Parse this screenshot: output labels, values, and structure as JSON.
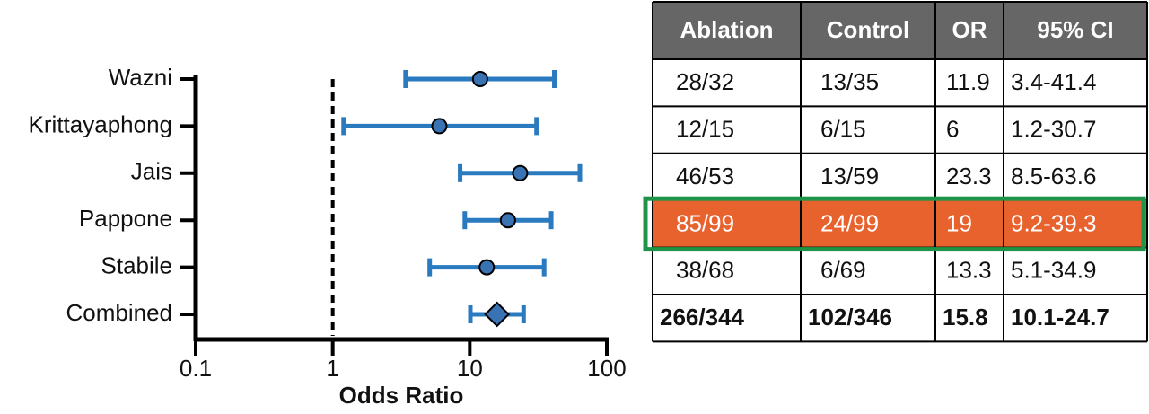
{
  "chart_data": {
    "type": "forest",
    "categories": [
      "Wazni",
      "Krittayaphong",
      "Jais",
      "Pappone",
      "Stabile",
      "Combined"
    ],
    "values": [
      11.9,
      6,
      23.3,
      19,
      13.3,
      15.8
    ],
    "ci_low": [
      3.4,
      1.2,
      8.5,
      9.2,
      5.1,
      10.1
    ],
    "ci_high": [
      41.4,
      30.7,
      63.6,
      39.3,
      34.9,
      24.7
    ],
    "ci_labels": [
      "3.4-41.4",
      "1.2-30.7",
      "8.5-63.6",
      "9.2-39.3",
      "5.1-34.9",
      "10.1-24.7"
    ],
    "markers": [
      "circle",
      "circle",
      "circle",
      "circle",
      "circle",
      "diamond"
    ],
    "color": "#2a7abf",
    "marker_color": "#3a73b3",
    "xlabel": "Odds Ratio",
    "log_x": true,
    "xlim": [
      0.1,
      100
    ],
    "xticks": [
      0.1,
      1,
      10,
      100
    ],
    "reference_line": 1
  },
  "table": {
    "header": [
      "Ablation",
      "Control",
      "OR",
      "95% CI"
    ],
    "rows": [
      [
        "28/32",
        "13/35"
      ],
      [
        "12/15",
        "6/15"
      ],
      [
        "46/53",
        "13/59"
      ],
      [
        "85/99",
        "24/99"
      ],
      [
        "38/68",
        "6/69"
      ],
      [
        "266/344",
        "102/346"
      ]
    ],
    "highlight_row": 3,
    "bold_row": 5
  }
}
